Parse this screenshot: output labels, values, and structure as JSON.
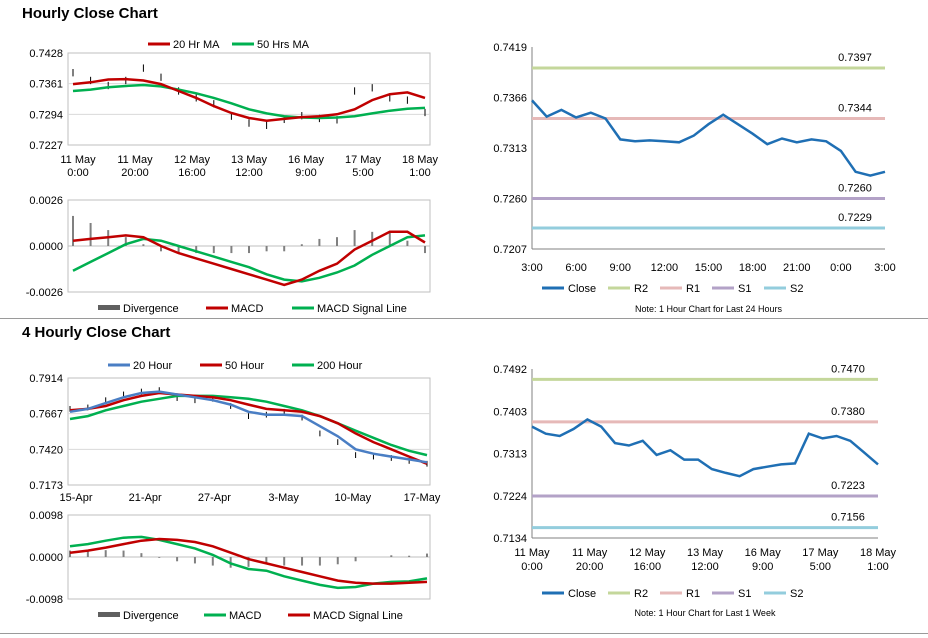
{
  "titles": {
    "hourly": "Hourly Close Chart",
    "four_hourly": "4 Hourly Close Chart"
  },
  "colors": {
    "ma20": "#c00000",
    "ma50": "#00b050",
    "close_blue": "#1f6fb4",
    "ma200": "#00b050",
    "ma20_blue": "#4a7ec4",
    "divergence": "#808080",
    "r2": "#c4d79b",
    "r1": "#e6b9b8",
    "s1": "#b3a2c7",
    "s2": "#93cddd"
  },
  "chart_data": [
    {
      "id": "hourly-price",
      "type": "line",
      "legend": [
        "20 Hr MA",
        "50 Hrs MA"
      ],
      "legend_position": "top",
      "ylim": [
        0.7227,
        0.7428
      ],
      "yticks": [
        "0.7428",
        "0.7361",
        "0.7294",
        "0.7227"
      ],
      "xticks": [
        [
          "11 May",
          "0:00"
        ],
        [
          "11 May",
          "20:00"
        ],
        [
          "12 May",
          "16:00"
        ],
        [
          "13 May",
          "12:00"
        ],
        [
          "16 May",
          "9:00"
        ],
        [
          "17 May",
          "5:00"
        ],
        [
          "18 May",
          "1:00"
        ]
      ],
      "x": [
        0,
        5,
        10,
        15,
        20,
        25,
        30,
        35,
        40,
        45,
        50,
        55,
        60,
        65,
        70,
        75,
        80,
        85,
        90,
        95,
        100
      ],
      "close": [
        0.7385,
        0.7368,
        0.7357,
        0.7368,
        0.7395,
        0.7375,
        0.7345,
        0.733,
        0.7317,
        0.729,
        0.7275,
        0.727,
        0.7283,
        0.7291,
        0.7285,
        0.7282,
        0.7345,
        0.7352,
        0.733,
        0.7325,
        0.7298
      ],
      "series": [
        {
          "name": "20 Hr MA",
          "values": [
            0.736,
            0.7364,
            0.737,
            0.7371,
            0.7368,
            0.736,
            0.7345,
            0.733,
            0.7312,
            0.7297,
            0.7286,
            0.728,
            0.7284,
            0.7288,
            0.729,
            0.7294,
            0.7305,
            0.7325,
            0.7338,
            0.7342,
            0.733
          ]
        },
        {
          "name": "50 Hrs MA",
          "values": [
            0.7345,
            0.7348,
            0.7353,
            0.7356,
            0.7358,
            0.7355,
            0.7348,
            0.734,
            0.733,
            0.7318,
            0.7305,
            0.7296,
            0.729,
            0.7287,
            0.7286,
            0.7287,
            0.729,
            0.7296,
            0.7302,
            0.7306,
            0.7308
          ]
        }
      ]
    },
    {
      "id": "hourly-macd",
      "type": "line",
      "legend": [
        "Divergence",
        "MACD",
        "MACD Signal Line"
      ],
      "ylim": [
        -0.0026,
        0.0026
      ],
      "yticks": [
        "0.0026",
        "0.0000",
        "-0.0026"
      ],
      "x": [
        0,
        5,
        10,
        15,
        20,
        25,
        30,
        35,
        40,
        45,
        50,
        55,
        60,
        65,
        70,
        75,
        80,
        85,
        90,
        95,
        100
      ],
      "series": [
        {
          "name": "MACD",
          "values": [
            0.0003,
            0.0004,
            0.0005,
            0.0006,
            0.0005,
            0.0,
            -0.0004,
            -0.0007,
            -0.001,
            -0.0013,
            -0.0016,
            -0.0019,
            -0.0022,
            -0.0019,
            -0.0014,
            -0.001,
            -0.0002,
            0.0003,
            0.0008,
            0.0008,
            0.0002
          ]
        },
        {
          "name": "MACD Signal Line",
          "values": [
            -0.0014,
            -0.0009,
            -0.0004,
            0.0001,
            0.0004,
            0.0003,
            0.0,
            -0.0003,
            -0.0006,
            -0.0009,
            -0.0012,
            -0.0016,
            -0.0019,
            -0.002,
            -0.0018,
            -0.0015,
            -0.0011,
            -0.0005,
            0.0,
            0.0005,
            0.0006
          ]
        },
        {
          "name": "Divergence",
          "values": [
            0.0017,
            0.0013,
            0.0009,
            0.0005,
            0.0001,
            -0.0003,
            -0.0004,
            -0.0004,
            -0.0004,
            -0.0004,
            -0.0004,
            -0.0003,
            -0.0003,
            0.0001,
            0.0004,
            0.0005,
            0.0009,
            0.0008,
            0.0008,
            0.0003,
            -0.0004
          ]
        }
      ]
    },
    {
      "id": "hourly-levels",
      "type": "line",
      "ylim": [
        0.7207,
        0.7419
      ],
      "yticks": [
        "0.7419",
        "0.7366",
        "0.7313",
        "0.7260",
        "0.7207"
      ],
      "xticks": [
        "3:00",
        "6:00",
        "9:00",
        "12:00",
        "15:00",
        "18:00",
        "21:00",
        "0:00",
        "3:00"
      ],
      "x": [
        0,
        1,
        2,
        3,
        4,
        5,
        6,
        7,
        8,
        9,
        10,
        11,
        12,
        13,
        14,
        15,
        16,
        17,
        18,
        19,
        20,
        21,
        22,
        23,
        24
      ],
      "series": [
        {
          "name": "Close",
          "values": [
            0.7363,
            0.7346,
            0.7353,
            0.7345,
            0.735,
            0.7344,
            0.7322,
            0.732,
            0.7321,
            0.732,
            0.7319,
            0.7326,
            0.7338,
            0.7348,
            0.7338,
            0.7328,
            0.7317,
            0.7323,
            0.7319,
            0.7322,
            0.732,
            0.731,
            0.7288,
            0.7284,
            0.7288
          ]
        }
      ],
      "levels": [
        {
          "name": "R2",
          "value": 0.7397,
          "label": "0.7397"
        },
        {
          "name": "R1",
          "value": 0.7344,
          "label": "0.7344"
        },
        {
          "name": "S1",
          "value": 0.726,
          "label": "0.7260"
        },
        {
          "name": "S2",
          "value": 0.7229,
          "label": "0.7229"
        }
      ],
      "legend": [
        "Close",
        "R2",
        "R1",
        "S1",
        "S2"
      ],
      "note": "Note: 1 Hour Chart for Last 24 Hours"
    },
    {
      "id": "four-hourly-price",
      "type": "line",
      "legend": [
        "20 Hour",
        "50 Hour",
        "200 Hour"
      ],
      "legend_position": "top",
      "ylim": [
        0.7173,
        0.7914
      ],
      "yticks": [
        "0.7914",
        "0.7667",
        "0.7420",
        "0.7173"
      ],
      "xticks": [
        "15-Apr",
        "21-Apr",
        "27-Apr",
        "3-May",
        "10-May",
        "17-May"
      ],
      "x": [
        0,
        5,
        10,
        15,
        20,
        25,
        30,
        35,
        40,
        45,
        50,
        55,
        60,
        65,
        70,
        75,
        80,
        85,
        90,
        95,
        100
      ],
      "close": [
        0.77,
        0.771,
        0.776,
        0.78,
        0.782,
        0.783,
        0.7775,
        0.776,
        0.777,
        0.772,
        0.765,
        0.766,
        0.768,
        0.764,
        0.753,
        0.747,
        0.738,
        0.737,
        0.736,
        0.734,
        0.732
      ],
      "series": [
        {
          "name": "20 Hour",
          "values": [
            0.768,
            0.77,
            0.774,
            0.778,
            0.781,
            0.782,
            0.78,
            0.778,
            0.776,
            0.773,
            0.768,
            0.766,
            0.766,
            0.765,
            0.758,
            0.751,
            0.742,
            0.739,
            0.737,
            0.735,
            0.733
          ]
        },
        {
          "name": "50 Hour",
          "values": [
            0.769,
            0.77,
            0.772,
            0.776,
            0.779,
            0.781,
            0.78,
            0.779,
            0.778,
            0.776,
            0.773,
            0.77,
            0.769,
            0.768,
            0.765,
            0.76,
            0.753,
            0.747,
            0.742,
            0.737,
            0.732
          ]
        },
        {
          "name": "200 Hour",
          "values": [
            0.763,
            0.765,
            0.769,
            0.772,
            0.775,
            0.777,
            0.779,
            0.779,
            0.779,
            0.778,
            0.777,
            0.775,
            0.772,
            0.769,
            0.765,
            0.76,
            0.755,
            0.75,
            0.745,
            0.741,
            0.738
          ]
        }
      ]
    },
    {
      "id": "four-hourly-macd",
      "type": "line",
      "legend": [
        "Divergence",
        "MACD",
        "MACD Signal Line"
      ],
      "ylim": [
        -0.0098,
        0.0098
      ],
      "yticks": [
        "0.0098",
        "0.0000",
        "-0.0098"
      ],
      "x": [
        0,
        5,
        10,
        15,
        20,
        25,
        30,
        35,
        40,
        45,
        50,
        55,
        60,
        65,
        70,
        75,
        80,
        85,
        90,
        95,
        100
      ],
      "series": [
        {
          "name": "MACD",
          "values": [
            0.0025,
            0.003,
            0.0038,
            0.0045,
            0.0047,
            0.004,
            0.003,
            0.002,
            0.0005,
            -0.0015,
            -0.0028,
            -0.0032,
            -0.0045,
            -0.0055,
            -0.0065,
            -0.0072,
            -0.007,
            -0.0062,
            -0.0058,
            -0.0057,
            -0.005
          ]
        },
        {
          "name": "MACD Signal Line",
          "values": [
            0.001,
            0.0015,
            0.0022,
            0.003,
            0.0038,
            0.0042,
            0.004,
            0.0035,
            0.0025,
            0.001,
            -0.0005,
            -0.0015,
            -0.0025,
            -0.0035,
            -0.0045,
            -0.0055,
            -0.006,
            -0.0062,
            -0.0062,
            -0.006,
            -0.0058
          ]
        },
        {
          "name": "Divergence",
          "values": [
            0.0015,
            0.0015,
            0.0016,
            0.0015,
            0.0009,
            -0.0002,
            -0.001,
            -0.0015,
            -0.002,
            -0.0025,
            -0.0023,
            -0.0017,
            -0.002,
            -0.002,
            -0.002,
            -0.0017,
            -0.001,
            0.0,
            0.0004,
            0.0003,
            0.0008
          ]
        }
      ]
    },
    {
      "id": "four-hourly-levels",
      "type": "line",
      "ylim": [
        0.7134,
        0.7492
      ],
      "yticks": [
        "0.7492",
        "0.7403",
        "0.7313",
        "0.7224",
        "0.7134"
      ],
      "xticks": [
        [
          "11 May",
          "0:00"
        ],
        [
          "11 May",
          "20:00"
        ],
        [
          "12 May",
          "16:00"
        ],
        [
          "13 May",
          "12:00"
        ],
        [
          "16 May",
          "9:00"
        ],
        [
          "17 May",
          "5:00"
        ],
        [
          "18 May",
          "1:00"
        ]
      ],
      "x": [
        0,
        4,
        8,
        12,
        16,
        20,
        24,
        28,
        32,
        36,
        40,
        44,
        48,
        52,
        56,
        60,
        64,
        68,
        72,
        76,
        80,
        84,
        88,
        92,
        96,
        100
      ],
      "series": [
        {
          "name": "Close",
          "values": [
            0.737,
            0.7355,
            0.735,
            0.7365,
            0.7385,
            0.737,
            0.7335,
            0.733,
            0.734,
            0.731,
            0.732,
            0.73,
            0.73,
            0.728,
            0.7272,
            0.7265,
            0.728,
            0.7285,
            0.729,
            0.7292,
            0.7355,
            0.7345,
            0.735,
            0.734,
            0.7315,
            0.729
          ]
        }
      ],
      "levels": [
        {
          "name": "R2",
          "value": 0.747,
          "label": "0.7470"
        },
        {
          "name": "R1",
          "value": 0.738,
          "label": "0.7380"
        },
        {
          "name": "S1",
          "value": 0.7223,
          "label": "0.7223"
        },
        {
          "name": "S2",
          "value": 0.7156,
          "label": "0.7156"
        }
      ],
      "legend": [
        "Close",
        "R2",
        "R1",
        "S1",
        "S2"
      ],
      "note": "Note: 1 Hour Chart for Last 1 Week"
    }
  ]
}
